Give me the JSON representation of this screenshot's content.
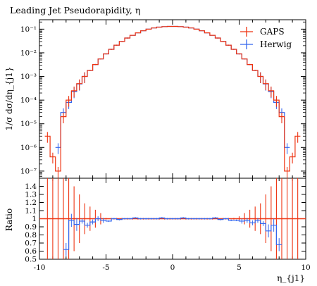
{
  "chart_data": [
    {
      "type": "line",
      "title": "Leading Jet Pseudorapidity, η",
      "ylabel": "1/σ dσ/dη_{j1}",
      "xlabel": "",
      "xlim": [
        -10,
        10
      ],
      "ylim": [
        5e-08,
        0.25
      ],
      "yscale": "log",
      "x_ticks": [
        "-10",
        "-5",
        "0",
        "5",
        "10"
      ],
      "y_ticks": [
        "10⁻¹",
        "10⁻²",
        "10⁻³",
        "10⁻⁴",
        "10⁻⁵",
        "10⁻⁶",
        "10⁻⁷"
      ],
      "legend_position": "top-right",
      "series": [
        {
          "name": "GAPS",
          "color": "#ee3311",
          "x": [
            -9.4,
            -9.0,
            -8.6,
            -8.2,
            -7.8,
            -7.4,
            -7.0,
            -6.6,
            -6.2,
            -5.8,
            -5.4,
            -5.0,
            -4.6,
            -4.2,
            -3.8,
            -3.4,
            -3.0,
            -2.6,
            -2.2,
            -1.8,
            -1.4,
            -1.0,
            -0.6,
            -0.2,
            0.2,
            0.6,
            1.0,
            1.4,
            1.8,
            2.2,
            2.6,
            3.0,
            3.4,
            3.8,
            4.2,
            4.6,
            5.0,
            5.4,
            5.8,
            6.2,
            6.6,
            7.0,
            7.4,
            7.8,
            8.2,
            8.6,
            9.0,
            9.4
          ],
          "values": [
            3e-06,
            4e-07,
            1e-07,
            2e-05,
            0.0001,
            0.00025,
            0.0005,
            0.001,
            0.0018,
            0.0032,
            0.0055,
            0.009,
            0.014,
            0.021,
            0.03,
            0.042,
            0.055,
            0.07,
            0.085,
            0.1,
            0.112,
            0.122,
            0.128,
            0.13,
            0.13,
            0.128,
            0.122,
            0.112,
            0.1,
            0.085,
            0.07,
            0.055,
            0.042,
            0.03,
            0.021,
            0.014,
            0.009,
            0.0055,
            0.0032,
            0.0018,
            0.001,
            0.0005,
            0.00025,
            0.0001,
            2e-05,
            1e-07,
            4e-07,
            3e-06
          ]
        },
        {
          "name": "Herwig",
          "color": "#3366ee",
          "x": [
            -8.6,
            -8.2,
            -7.8,
            -7.4,
            -7.0,
            -6.6,
            -6.2,
            -5.8,
            -5.4,
            -5.0,
            -4.6,
            -4.2,
            -3.8,
            -3.4,
            -3.0,
            -2.6,
            -2.2,
            -1.8,
            -1.4,
            -1.0,
            -0.6,
            -0.2,
            0.2,
            0.6,
            1.0,
            1.4,
            1.8,
            2.2,
            2.6,
            3.0,
            3.4,
            3.8,
            4.2,
            4.6,
            5.0,
            5.4,
            5.8,
            6.2,
            6.6,
            7.0,
            7.4,
            7.8,
            8.2,
            8.6
          ],
          "values": [
            1e-06,
            3e-05,
            8e-05,
            0.00023,
            0.00048,
            0.001,
            0.0018,
            0.0032,
            0.0055,
            0.009,
            0.014,
            0.021,
            0.03,
            0.042,
            0.055,
            0.07,
            0.085,
            0.1,
            0.112,
            0.122,
            0.128,
            0.13,
            0.13,
            0.128,
            0.122,
            0.112,
            0.1,
            0.085,
            0.07,
            0.055,
            0.042,
            0.03,
            0.021,
            0.014,
            0.009,
            0.0055,
            0.0032,
            0.0018,
            0.001,
            0.00048,
            0.00023,
            8e-05,
            3e-05,
            1e-06
          ]
        }
      ]
    },
    {
      "type": "line",
      "title": "",
      "ylabel": "Ratio",
      "xlabel": "η_{j1}",
      "xlim": [
        -10,
        10
      ],
      "ylim": [
        0.5,
        1.5
      ],
      "x_ticks": [
        "-10",
        "-5",
        "0",
        "5",
        "10"
      ],
      "y_ticks": [
        "0.5",
        "0.6",
        "0.7",
        "0.8",
        "0.9",
        "1",
        "1.1",
        "1.2",
        "1.3",
        "1.4"
      ],
      "series": [
        {
          "name": "GAPS",
          "color": "#ee3311",
          "x": [
            -10,
            10
          ],
          "values": [
            1,
            1
          ]
        },
        {
          "name": "Herwig",
          "color": "#3366ee",
          "x": [
            -8.0,
            -7.6,
            -7.2,
            -6.8,
            -6.4,
            -6.0,
            -5.6,
            -5.2,
            -4.8,
            -4.4,
            -4.0,
            -3.6,
            -3.2,
            -2.8,
            -2.4,
            -2.0,
            -1.6,
            -1.2,
            -0.8,
            -0.4,
            0.0,
            0.4,
            0.8,
            1.2,
            1.6,
            2.0,
            2.4,
            2.8,
            3.2,
            3.6,
            4.0,
            4.4,
            4.8,
            5.2,
            5.6,
            6.0,
            6.4,
            6.8,
            7.2,
            7.6,
            8.0
          ],
          "values": [
            0.62,
            0.98,
            0.93,
            0.97,
            0.92,
            0.96,
            1.0,
            0.98,
            0.97,
            1.0,
            0.99,
            1.0,
            1.0,
            1.01,
            1.0,
            1.0,
            1.0,
            1.0,
            1.01,
            1.0,
            1.0,
            1.0,
            1.01,
            1.0,
            1.0,
            1.0,
            1.0,
            1.0,
            1.01,
            0.99,
            1.0,
            0.98,
            0.98,
            0.97,
            0.98,
            0.95,
            0.98,
            0.94,
            0.85,
            0.92,
            0.68
          ]
        }
      ]
    }
  ]
}
